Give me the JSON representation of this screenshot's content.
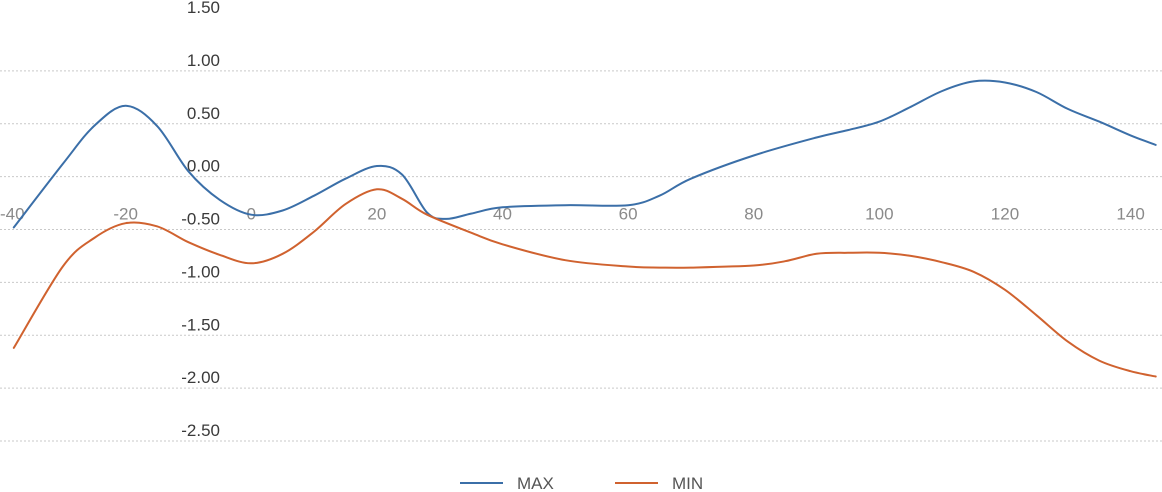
{
  "chart_data": {
    "type": "line",
    "title": "",
    "xlabel": "",
    "ylabel": "",
    "xlim": [
      -40,
      145
    ],
    "ylim": [
      -2.5,
      1.5
    ],
    "x_ticks": [
      "-40",
      "-20",
      "0",
      "20",
      "40",
      "60",
      "80",
      "100",
      "120",
      "140"
    ],
    "y_ticks": [
      "1.50",
      "1.00",
      "0.50",
      "0.00",
      "-0.50",
      "-1.00",
      "-1.50",
      "-2.00",
      "-2.50"
    ],
    "grid": true,
    "legend_position": "bottom-center",
    "colors": {
      "MAX": "#3b6fa8",
      "MIN": "#d0622f"
    },
    "series": [
      {
        "name": "MAX",
        "points": [
          [
            -37.8,
            -0.48
          ],
          [
            -30,
            0.12
          ],
          [
            -25,
            0.48
          ],
          [
            -20,
            0.67
          ],
          [
            -15,
            0.48
          ],
          [
            -10,
            0.05
          ],
          [
            -5,
            -0.22
          ],
          [
            0,
            -0.36
          ],
          [
            5,
            -0.32
          ],
          [
            10,
            -0.18
          ],
          [
            15,
            -0.02
          ],
          [
            20,
            0.1
          ],
          [
            24,
            0.02
          ],
          [
            28,
            -0.34
          ],
          [
            31,
            -0.4
          ],
          [
            35,
            -0.35
          ],
          [
            40,
            -0.29
          ],
          [
            50,
            -0.27
          ],
          [
            60,
            -0.27
          ],
          [
            65,
            -0.18
          ],
          [
            70,
            -0.02
          ],
          [
            80,
            0.2
          ],
          [
            90,
            0.37
          ],
          [
            95,
            0.44
          ],
          [
            100,
            0.52
          ],
          [
            105,
            0.66
          ],
          [
            110,
            0.81
          ],
          [
            115,
            0.9
          ],
          [
            120,
            0.89
          ],
          [
            125,
            0.8
          ],
          [
            130,
            0.64
          ],
          [
            135,
            0.52
          ],
          [
            140,
            0.39
          ],
          [
            144,
            0.3
          ]
        ]
      },
      {
        "name": "MIN",
        "points": [
          [
            -37.8,
            -1.62
          ],
          [
            -30,
            -0.85
          ],
          [
            -25,
            -0.58
          ],
          [
            -20,
            -0.44
          ],
          [
            -15,
            -0.47
          ],
          [
            -10,
            -0.62
          ],
          [
            -5,
            -0.74
          ],
          [
            0,
            -0.82
          ],
          [
            5,
            -0.73
          ],
          [
            10,
            -0.52
          ],
          [
            15,
            -0.26
          ],
          [
            20,
            -0.12
          ],
          [
            24,
            -0.21
          ],
          [
            28,
            -0.36
          ],
          [
            35,
            -0.53
          ],
          [
            40,
            -0.64
          ],
          [
            50,
            -0.79
          ],
          [
            60,
            -0.85
          ],
          [
            65,
            -0.86
          ],
          [
            70,
            -0.86
          ],
          [
            80,
            -0.84
          ],
          [
            85,
            -0.8
          ],
          [
            90,
            -0.73
          ],
          [
            95,
            -0.72
          ],
          [
            100,
            -0.72
          ],
          [
            105,
            -0.75
          ],
          [
            110,
            -0.81
          ],
          [
            115,
            -0.9
          ],
          [
            120,
            -1.07
          ],
          [
            125,
            -1.31
          ],
          [
            130,
            -1.56
          ],
          [
            135,
            -1.74
          ],
          [
            140,
            -1.84
          ],
          [
            144,
            -1.89
          ]
        ]
      }
    ]
  }
}
